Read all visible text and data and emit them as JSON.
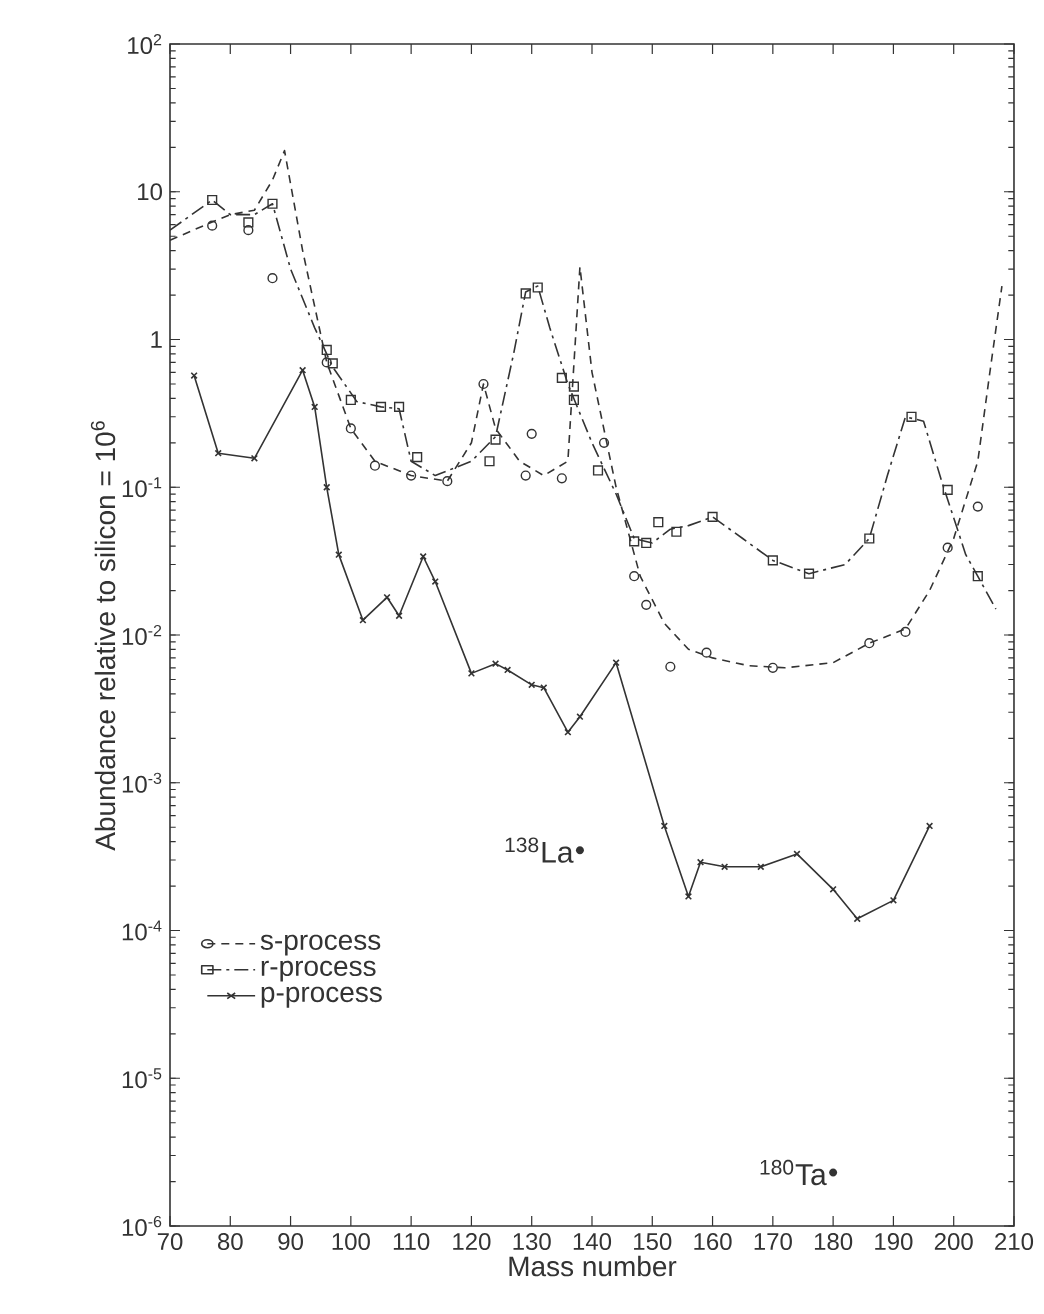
{
  "chart_data": {
    "type": "line",
    "xlabel": "Mass number",
    "ylabel": "Abundance relative to silicon = 10$^{6}$",
    "xlim": [
      70,
      210
    ],
    "xticks": [
      70,
      80,
      90,
      100,
      110,
      120,
      130,
      140,
      150,
      160,
      170,
      180,
      190,
      200,
      210
    ],
    "ylim": [
      1e-06,
      100
    ],
    "log": "y",
    "yticks": [
      {
        "value": 1e-06,
        "label": "10$^{-6}$"
      },
      {
        "value": 1e-05,
        "label": "10$^{-5}$"
      },
      {
        "value": 0.0001,
        "label": "10$^{-4}$"
      },
      {
        "value": 0.001,
        "label": "10$^{-3}$"
      },
      {
        "value": 0.01,
        "label": "10$^{-2}$"
      },
      {
        "value": 0.1,
        "label": "10$^{-1}$"
      },
      {
        "value": 1,
        "label": "1"
      },
      {
        "value": 10,
        "label": "10"
      },
      {
        "value": 100,
        "label": "10$^{2}$"
      }
    ],
    "grid": false,
    "legend": "bottom left",
    "series": [
      {
        "name": "s-process",
        "line_style": "dashed",
        "color": "#333333",
        "x": [
          70,
          76,
          80,
          84,
          87,
          89,
          92,
          96,
          100,
          104,
          110,
          116,
          120,
          122,
          124,
          128,
          132,
          136,
          138,
          140,
          144,
          148,
          152,
          156,
          160,
          166,
          172,
          180,
          186,
          192,
          196,
          200,
          204,
          206,
          208
        ],
        "values": [
          4.7,
          6,
          7,
          7.5,
          12,
          19,
          4,
          0.7,
          0.25,
          0.15,
          0.12,
          0.11,
          0.2,
          0.5,
          0.25,
          0.15,
          0.12,
          0.15,
          3.1,
          0.6,
          0.1,
          0.025,
          0.012,
          0.008,
          0.007,
          0.0062,
          0.006,
          0.0065,
          0.0088,
          0.011,
          0.02,
          0.045,
          0.15,
          0.6,
          2.3
        ]
      },
      {
        "type": "scatter",
        "marker": "circle",
        "color": "#333333",
        "x": [
          77,
          83,
          87,
          96,
          100,
          104,
          110,
          116,
          122,
          129,
          130,
          135,
          142,
          147,
          149,
          153,
          159,
          170,
          186,
          192,
          199,
          204
        ],
        "values": [
          5.9,
          5.5,
          2.6,
          0.7,
          0.25,
          0.14,
          0.12,
          0.11,
          0.5,
          0.12,
          0.23,
          0.115,
          0.2,
          0.025,
          0.016,
          0.0061,
          0.0076,
          0.006,
          0.0088,
          0.0105,
          0.039,
          0.074
        ]
      },
      {
        "name": "r-process",
        "line_style": "dashdot",
        "color": "#333333",
        "x": [
          70,
          77,
          80,
          84,
          87,
          90,
          94,
          97,
          101,
          105,
          108,
          110,
          114,
          120,
          124,
          127,
          129,
          131,
          133,
          136,
          140,
          144,
          147,
          150,
          153,
          156,
          160,
          165,
          170,
          176,
          182,
          186,
          189,
          192,
          195,
          198,
          202,
          207
        ],
        "values": [
          5.5,
          8.8,
          7,
          7,
          8.3,
          3,
          1.2,
          0.65,
          0.38,
          0.35,
          0.34,
          0.15,
          0.12,
          0.15,
          0.22,
          0.8,
          2.1,
          2.3,
          1.2,
          0.5,
          0.2,
          0.09,
          0.045,
          0.042,
          0.052,
          0.055,
          0.063,
          0.045,
          0.032,
          0.026,
          0.03,
          0.045,
          0.12,
          0.3,
          0.28,
          0.11,
          0.035,
          0.015
        ]
      },
      {
        "type": "scatter",
        "marker": "square",
        "color": "#333333",
        "x": [
          77,
          83,
          87,
          96,
          97,
          100,
          105,
          108,
          111,
          123,
          124,
          129,
          131,
          135,
          137,
          137,
          141,
          147,
          149,
          151,
          154,
          160,
          170,
          176,
          186,
          193,
          199,
          204
        ],
        "values": [
          8.8,
          6.2,
          8.3,
          0.85,
          0.69,
          0.39,
          0.35,
          0.35,
          0.16,
          0.15,
          0.21,
          2.05,
          2.25,
          0.55,
          0.48,
          0.39,
          0.13,
          0.043,
          0.042,
          0.058,
          0.05,
          0.063,
          0.032,
          0.026,
          0.045,
          0.3,
          0.096,
          0.025
        ]
      },
      {
        "name": "p-process",
        "line_style": "solid",
        "marker": "cross",
        "color": "#333333",
        "x": [
          74,
          78,
          84,
          92,
          94,
          96,
          98,
          102,
          106,
          108,
          112,
          114,
          120,
          124,
          126,
          130,
          132,
          136,
          138,
          144,
          152,
          156,
          158,
          162,
          168,
          174,
          180,
          184,
          190,
          196
        ],
        "values": [
          0.57,
          0.17,
          0.157,
          0.62,
          0.35,
          0.1,
          0.035,
          0.0126,
          0.018,
          0.0135,
          0.034,
          0.023,
          0.0055,
          0.0064,
          0.0058,
          0.0046,
          0.0044,
          0.0022,
          0.0028,
          0.0065,
          0.00051,
          0.00017,
          0.00029,
          0.00027,
          0.00027,
          0.00033,
          0.00019,
          0.00012,
          0.00016,
          0.00051
        ]
      }
    ],
    "annotations": [
      {
        "text": "$^{138}$La",
        "x": 138,
        "y": 0.00035
      },
      {
        "text": "$^{180}$Ta",
        "x": 180,
        "y": 2.3e-06
      }
    ]
  }
}
